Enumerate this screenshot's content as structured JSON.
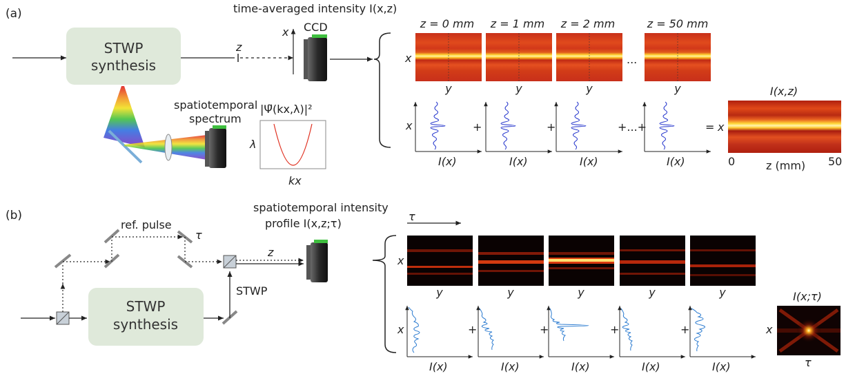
{
  "panel_a": {
    "label": "(a)",
    "synthesis_line1": "STWP",
    "synthesis_line2": "synthesis",
    "z_label": "z",
    "x_label": "x",
    "ccd_label": "CCD",
    "heading": "time-averaged intensity I(x,z)",
    "spectrum_line1": "spatiotemporal",
    "spectrum_line2": "spectrum",
    "spectrum_title": "|Ψ̃(kx,λ)|²",
    "spectrum_ylabel": "λ",
    "spectrum_xlabel": "kx",
    "frames": [
      {
        "title": "z = 0 mm",
        "xlabel": "y",
        "plot_xlabel": "I(x)"
      },
      {
        "title": "z = 1 mm",
        "xlabel": "y",
        "plot_xlabel": "I(x)"
      },
      {
        "title": "z = 2 mm",
        "xlabel": "y",
        "plot_xlabel": "I(x)"
      },
      {
        "title": "z = 50 mm",
        "xlabel": "y",
        "plot_xlabel": "I(x)"
      }
    ],
    "frame_ylabel": "x",
    "ellipsis": "...",
    "plus": "+",
    "plus_dots": "+...+",
    "equals": "=",
    "result_title": "I(x,z)",
    "result_ylabel": "x",
    "result_xlabel": "z (mm)",
    "result_xmin": "0",
    "result_xmax": "50"
  },
  "panel_b": {
    "label": "(b)",
    "synthesis_line1": "STWP",
    "synthesis_line2": "synthesis",
    "ref_label": "ref. pulse",
    "tau_label": "τ",
    "z_label": "z",
    "stwp_label": "STWP",
    "heading_line1": "spatiotemporal intensity",
    "heading_line2": "profile I(x,z;τ)",
    "tau_arrow_label": "τ",
    "frame_ylabel": "x",
    "frame_xlabel": "y",
    "plot_xlabel": "I(x)",
    "plus": "+",
    "result_title": "I(x;τ)",
    "result_ylabel": "x",
    "result_xlabel": "τ"
  },
  "colors": {
    "box_fill": "#dfe9da",
    "plot_line_a": "#2233cc",
    "plot_line_b": "#2b7bd0",
    "parabola": "#e03020",
    "mirror": "#7aaed8"
  }
}
